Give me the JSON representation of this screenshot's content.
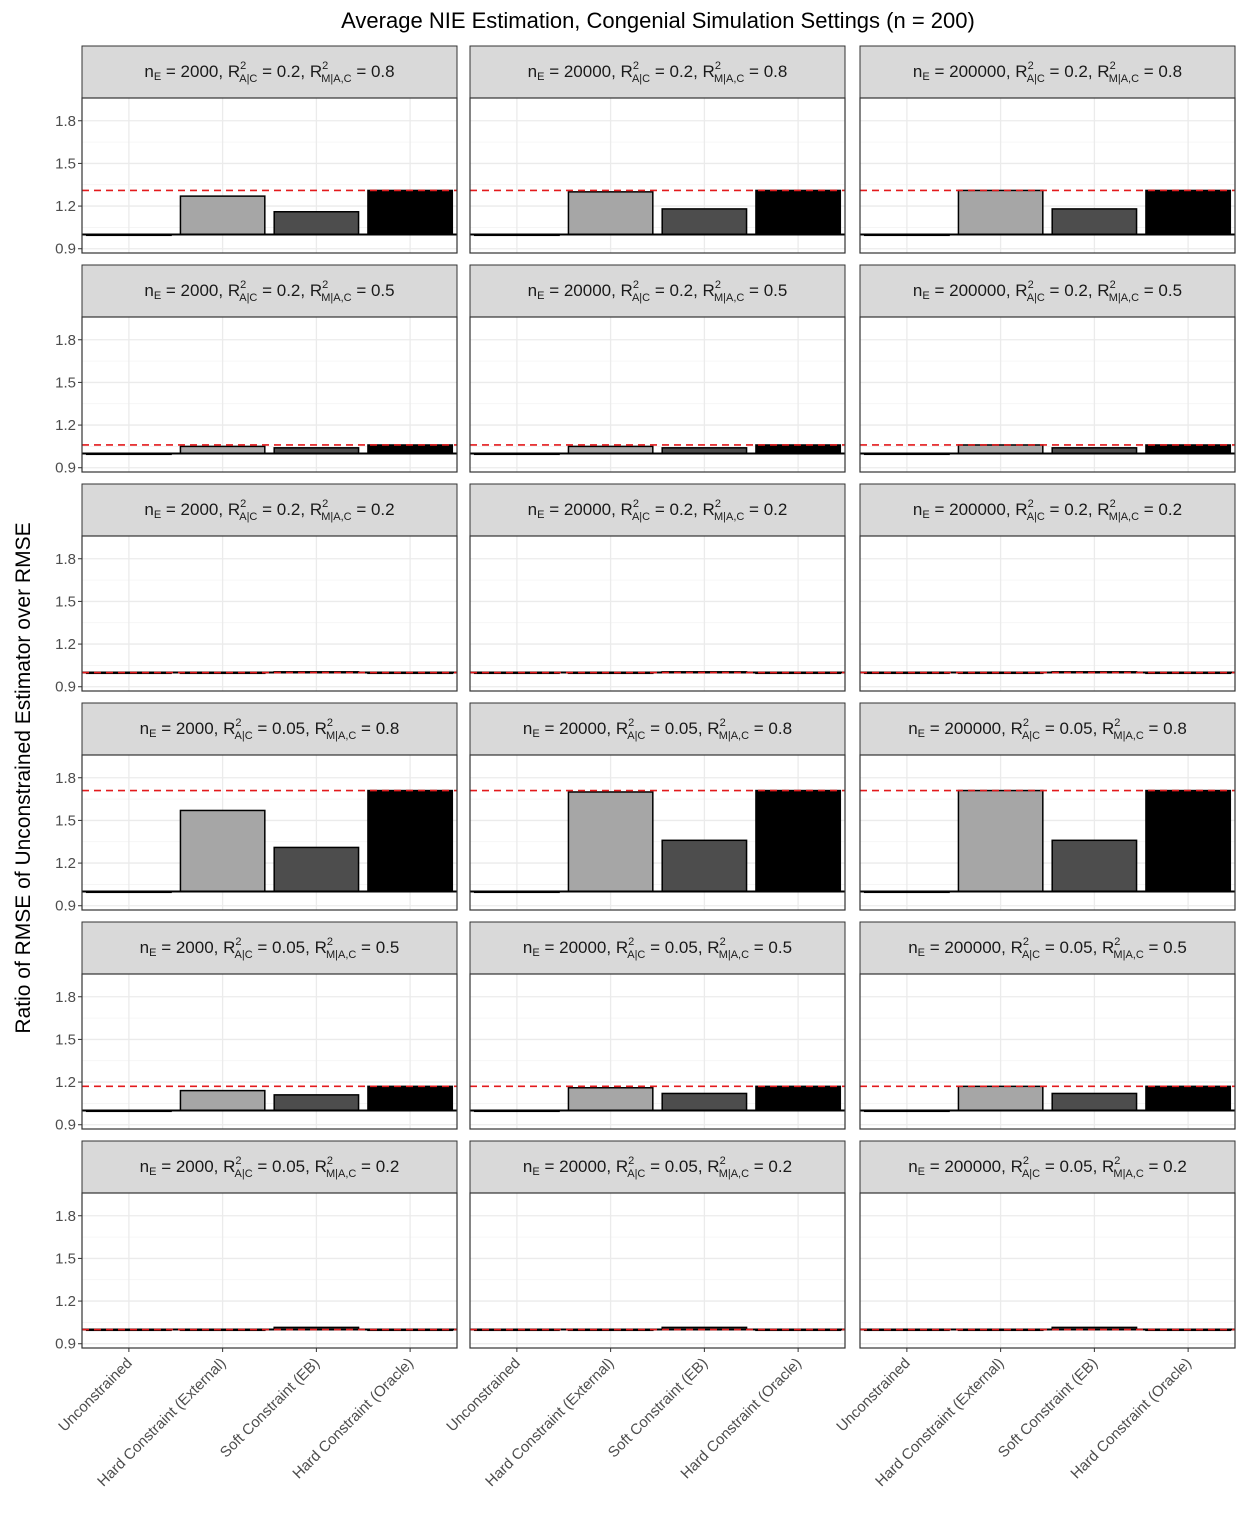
{
  "chart_data": {
    "type": "bar",
    "title": "Average NIE Estimation, Congenial Simulation Settings (n = 200)",
    "ylabel": "Ratio of RMSE of Unconstrained Estimator over RMSE",
    "xlabel": "",
    "categories": [
      "Unconstrained",
      "Hard Constraint (External)",
      "Soft Constraint (EB)",
      "Hard Constraint (Oracle)"
    ],
    "yticks": [
      0.9,
      1.2,
      1.5,
      1.8
    ],
    "ylim": [
      0.87,
      1.96
    ],
    "bar_colors": [
      "#ffffff",
      "#a6a6a6",
      "#4d4d4d",
      "#000000"
    ],
    "reference_line_color": "#e31a1c",
    "baseline": 1.0,
    "grid": true,
    "legend": "none",
    "facet_columns": [
      {
        "nE": "2000"
      },
      {
        "nE": "20000"
      },
      {
        "nE": "200000"
      }
    ],
    "facet_rows": [
      {
        "ra": "0.2",
        "rm": "0.8"
      },
      {
        "ra": "0.2",
        "rm": "0.5"
      },
      {
        "ra": "0.2",
        "rm": "0.2"
      },
      {
        "ra": "0.05",
        "rm": "0.8"
      },
      {
        "ra": "0.05",
        "rm": "0.5"
      },
      {
        "ra": "0.05",
        "rm": "0.2"
      }
    ],
    "panels": [
      {
        "row": 0,
        "col": 0,
        "values": [
          1.0,
          1.27,
          1.16,
          1.31
        ],
        "reference": 1.31
      },
      {
        "row": 0,
        "col": 1,
        "values": [
          1.0,
          1.3,
          1.18,
          1.31
        ],
        "reference": 1.31
      },
      {
        "row": 0,
        "col": 2,
        "values": [
          1.0,
          1.31,
          1.18,
          1.31
        ],
        "reference": 1.31
      },
      {
        "row": 1,
        "col": 0,
        "values": [
          1.0,
          1.05,
          1.04,
          1.06
        ],
        "reference": 1.06
      },
      {
        "row": 1,
        "col": 1,
        "values": [
          1.0,
          1.05,
          1.04,
          1.06
        ],
        "reference": 1.06
      },
      {
        "row": 1,
        "col": 2,
        "values": [
          1.0,
          1.06,
          1.04,
          1.06
        ],
        "reference": 1.06
      },
      {
        "row": 2,
        "col": 0,
        "values": [
          1.0,
          0.995,
          1.005,
          1.0
        ],
        "reference": 1.0
      },
      {
        "row": 2,
        "col": 1,
        "values": [
          1.0,
          1.0,
          1.005,
          1.0
        ],
        "reference": 1.0
      },
      {
        "row": 2,
        "col": 2,
        "values": [
          1.0,
          1.0,
          1.005,
          1.0
        ],
        "reference": 1.0
      },
      {
        "row": 3,
        "col": 0,
        "values": [
          1.0,
          1.57,
          1.31,
          1.71
        ],
        "reference": 1.71
      },
      {
        "row": 3,
        "col": 1,
        "values": [
          1.0,
          1.7,
          1.36,
          1.71
        ],
        "reference": 1.71
      },
      {
        "row": 3,
        "col": 2,
        "values": [
          1.0,
          1.71,
          1.36,
          1.71
        ],
        "reference": 1.71
      },
      {
        "row": 4,
        "col": 0,
        "values": [
          1.0,
          1.14,
          1.11,
          1.17
        ],
        "reference": 1.17
      },
      {
        "row": 4,
        "col": 1,
        "values": [
          1.0,
          1.16,
          1.12,
          1.17
        ],
        "reference": 1.17
      },
      {
        "row": 4,
        "col": 2,
        "values": [
          1.0,
          1.17,
          1.12,
          1.17
        ],
        "reference": 1.17
      },
      {
        "row": 5,
        "col": 0,
        "values": [
          1.0,
          0.995,
          1.015,
          1.0
        ],
        "reference": 1.0
      },
      {
        "row": 5,
        "col": 1,
        "values": [
          1.0,
          1.0,
          1.015,
          1.0
        ],
        "reference": 1.0
      },
      {
        "row": 5,
        "col": 2,
        "values": [
          1.0,
          1.0,
          1.015,
          1.0
        ],
        "reference": 1.0
      }
    ]
  }
}
